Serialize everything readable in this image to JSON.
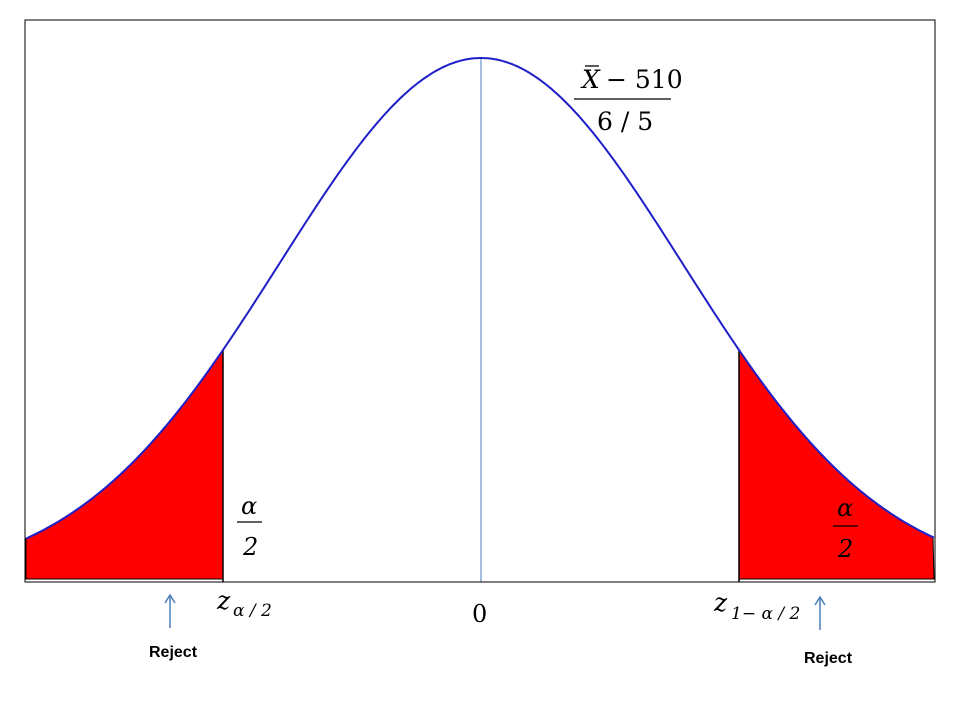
{
  "chart_data": {
    "type": "area",
    "title": "",
    "xlabel": "",
    "ylabel": "",
    "distribution": "standard normal",
    "xlim": [
      -3.5,
      3.5
    ],
    "grid": false,
    "mean": 0,
    "curve_color": "#1f1fc8",
    "fill_color": "#ff0000",
    "center_line_color": "#4a7ebb",
    "arrow_color": "#4a7ebb",
    "critical_values": {
      "lower": -1.0,
      "upper": 1.0
    },
    "formula": {
      "numerator_var": "X",
      "numerator_rest": "− 510",
      "denominator": "6 / 5"
    },
    "tail_labels": {
      "left": {
        "numerator": "α",
        "denominator": "2"
      },
      "right": {
        "numerator": "α",
        "denominator": "2"
      }
    },
    "tick_labels": {
      "lower_z": "z",
      "lower_sub": "α / 2",
      "center": "0",
      "upper_z": "z",
      "upper_sub": "1− α / 2"
    },
    "reject_labels": {
      "left": "Reject",
      "right": "Reject"
    }
  }
}
